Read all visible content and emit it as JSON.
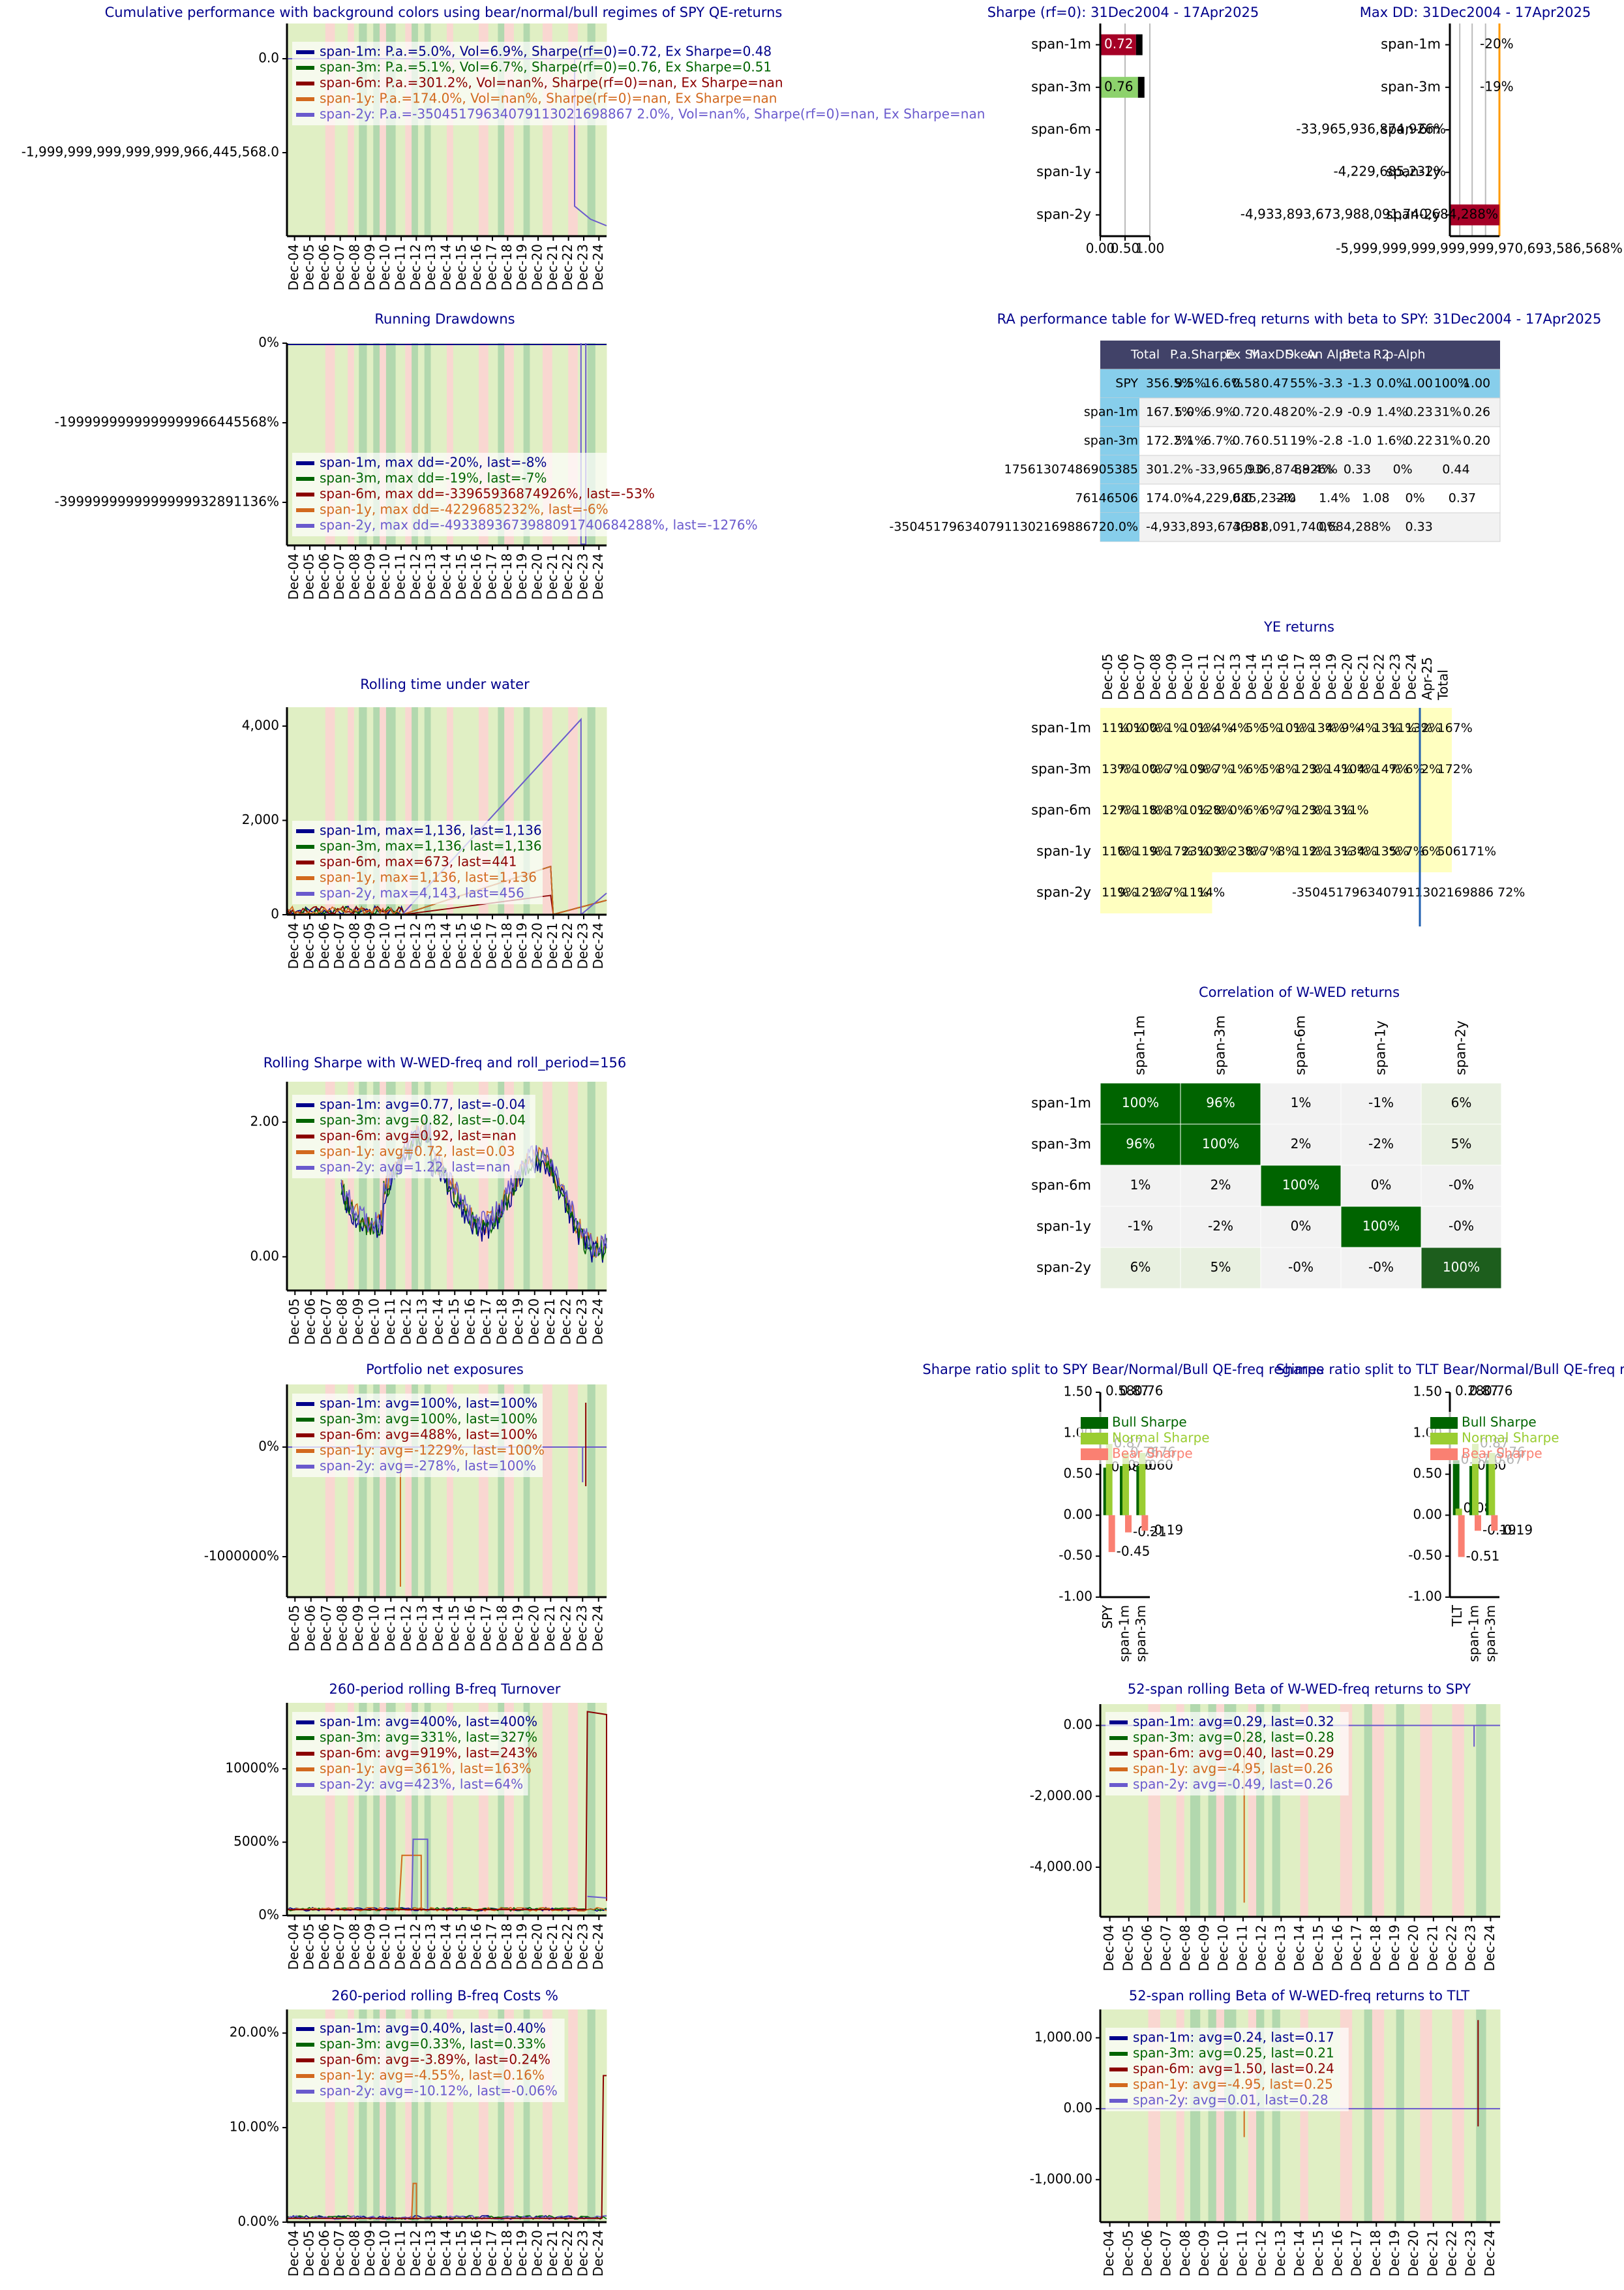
{
  "colors": {
    "series": [
      "#00008b",
      "#006400",
      "#8b0000",
      "#d2691e",
      "#6a5acd"
    ],
    "title": "#00008b",
    "regime_bear": "#f9d7d1",
    "regime_normal": "#e0efc4",
    "regime_bull": "#b2d8ae",
    "table_header": "#414268",
    "table_highlight": "#87ceeb",
    "yellow_cell": "#ffffc0",
    "green_dark": "#006400",
    "bar_red": "#a50026",
    "bar_green": "#8dd26c",
    "bull": "#006400",
    "normal": "#9acd32",
    "bear_bar": "#fa8072"
  },
  "series_names": [
    "span-1m",
    "span-3m",
    "span-6m",
    "span-1y",
    "span-2y"
  ],
  "year_labels": [
    "Dec-04",
    "Dec-05",
    "Dec-06",
    "Dec-07",
    "Dec-08",
    "Dec-09",
    "Dec-10",
    "Dec-11",
    "Dec-12",
    "Dec-13",
    "Dec-14",
    "Dec-15",
    "Dec-16",
    "Dec-17",
    "Dec-18",
    "Dec-19",
    "Dec-20",
    "Dec-21",
    "Dec-22",
    "Dec-23",
    "Dec-24"
  ],
  "year_labels_from05": [
    "Dec-05",
    "Dec-06",
    "Dec-07",
    "Dec-08",
    "Dec-09",
    "Dec-10",
    "Dec-11",
    "Dec-12",
    "Dec-13",
    "Dec-14",
    "Dec-15",
    "Dec-16",
    "Dec-17",
    "Dec-18",
    "Dec-19",
    "Dec-20",
    "Dec-21",
    "Dec-22",
    "Dec-23",
    "Dec-24"
  ],
  "regimes": [
    {
      "s": 0.0,
      "e": 0.12,
      "r": "n"
    },
    {
      "s": 0.12,
      "e": 0.15,
      "r": "b"
    },
    {
      "s": 0.15,
      "e": 0.19,
      "r": "n"
    },
    {
      "s": 0.19,
      "e": 0.21,
      "r": "b"
    },
    {
      "s": 0.21,
      "e": 0.225,
      "r": "n"
    },
    {
      "s": 0.225,
      "e": 0.25,
      "r": "B"
    },
    {
      "s": 0.25,
      "e": 0.27,
      "r": "n"
    },
    {
      "s": 0.27,
      "e": 0.29,
      "r": "B"
    },
    {
      "s": 0.29,
      "e": 0.31,
      "r": "b"
    },
    {
      "s": 0.31,
      "e": 0.34,
      "r": "B"
    },
    {
      "s": 0.34,
      "e": 0.37,
      "r": "n"
    },
    {
      "s": 0.37,
      "e": 0.39,
      "r": "b"
    },
    {
      "s": 0.39,
      "e": 0.41,
      "r": "B"
    },
    {
      "s": 0.41,
      "e": 0.43,
      "r": "n"
    },
    {
      "s": 0.43,
      "e": 0.45,
      "r": "B"
    },
    {
      "s": 0.45,
      "e": 0.5,
      "r": "n"
    },
    {
      "s": 0.5,
      "e": 0.52,
      "r": "b"
    },
    {
      "s": 0.52,
      "e": 0.6,
      "r": "n"
    },
    {
      "s": 0.6,
      "e": 0.63,
      "r": "b"
    },
    {
      "s": 0.63,
      "e": 0.66,
      "r": "n"
    },
    {
      "s": 0.66,
      "e": 0.68,
      "r": "B"
    },
    {
      "s": 0.68,
      "e": 0.71,
      "r": "b"
    },
    {
      "s": 0.71,
      "e": 0.74,
      "r": "n"
    },
    {
      "s": 0.74,
      "e": 0.76,
      "r": "B"
    },
    {
      "s": 0.76,
      "e": 0.8,
      "r": "n"
    },
    {
      "s": 0.8,
      "e": 0.83,
      "r": "b"
    },
    {
      "s": 0.83,
      "e": 0.88,
      "r": "n"
    },
    {
      "s": 0.88,
      "e": 0.91,
      "r": "b"
    },
    {
      "s": 0.91,
      "e": 0.94,
      "r": "n"
    },
    {
      "s": 0.94,
      "e": 0.965,
      "r": "B"
    },
    {
      "s": 0.965,
      "e": 1.0,
      "r": "n"
    }
  ],
  "chart_data": [
    {
      "id": "cum",
      "type": "line",
      "title": "Cumulative performance with background colors using bear/normal/bull regimes of SPY QE-returns",
      "ytick_labels": [
        "0.0",
        "-1,999,999,999,999,999,966,445,568.0"
      ],
      "legend": [
        "span-1m: P.a.=5.0%, Vol=6.9%, Sharpe(rf=0)=0.72, Ex Sharpe=0.48",
        "span-3m: P.a.=5.1%, Vol=6.7%, Sharpe(rf=0)=0.76, Ex Sharpe=0.51",
        "span-6m: P.a.=301.2%, Vol=nan%, Sharpe(rf=0)=nan, Ex Sharpe=nan",
        "span-1y: P.a.=174.0%, Vol=nan%, Sharpe(rf=0)=nan, Ex Sharpe=nan",
        "span-2y: P.a.=-35045179634079113021698867 2.0%, Vol=nan%, Sharpe(rf=0)=nan, Ex Sharpe=nan"
      ]
    },
    {
      "id": "sharpe_bar",
      "type": "bar",
      "title": "Sharpe (rf=0): 31Dec2004 - 17Apr2025",
      "categories": [
        "span-1m",
        "span-3m",
        "span-6m",
        "span-1y",
        "span-2y"
      ],
      "values": [
        0.72,
        0.76,
        null,
        null,
        null
      ],
      "value_labels": [
        "0.72",
        "0.76",
        "",
        "",
        ""
      ],
      "xtick_labels": [
        "0.00",
        "0.50",
        "1.00"
      ],
      "xlim": [
        0,
        1
      ]
    },
    {
      "id": "maxdd_bar",
      "type": "bar",
      "title": "Max DD: 31Dec2004 - 17Apr2025",
      "categories": [
        "span-1m",
        "span-3m",
        "span-6m",
        "span-1y",
        "span-2y"
      ],
      "value_labels": [
        "-20%",
        "-19%",
        "-33,965,936,874,926%",
        "-4,229,685,232%",
        "-4,933,893,673,988,091,740,684,288%"
      ],
      "xtick_label": "-5,999,999,999,999,999,970,693,586,568%"
    },
    {
      "id": "running_dd",
      "type": "line",
      "title": "Running Drawdowns",
      "ytick_labels": [
        "0%",
        "-1999999999999999966445568%",
        "-3999999999999999932891136%"
      ],
      "legend": [
        "span-1m, max dd=-20%, last=-8%",
        "span-3m, max dd=-19%, last=-7%",
        "span-6m, max dd=-33965936874926%, last=-53%",
        "span-1y, max dd=-4229685232%, last=-6%",
        "span-2y, max dd=-4933893673988091740684288%, last=-1276%"
      ]
    },
    {
      "id": "ra_table",
      "type": "table",
      "title": "RA performance table for W-WED-freq returns with beta to SPY: 31Dec2004 - 17Apr2025",
      "columns": [
        "",
        "Total",
        "P.a.",
        "Sharpe",
        "Ex Sh",
        "MaxDD",
        "Skew",
        "An Alpha",
        "Beta",
        "R2",
        "p-Alpha"
      ],
      "rows": [
        [
          "SPY",
          "356.5%",
          "9.5%",
          "16.6%",
          "0.58",
          "0.47",
          "55%",
          "-3.3",
          "-1.3",
          "0.0%",
          "1.00",
          "100%",
          "1.00"
        ],
        [
          "span-1m",
          "167.1%",
          "5.0%",
          "6.9%",
          "0.72",
          "0.48",
          "20%",
          "-2.9",
          "-0.9",
          "1.4%",
          "0.23",
          "31%",
          "0.26"
        ],
        [
          "span-3m",
          "172.2%",
          "5.1%",
          "6.7%",
          "0.76",
          "0.51",
          "19%",
          "-2.8",
          "-1.0",
          "1.6%",
          "0.22",
          "31%",
          "0.20"
        ],
        [
          "17561307486905385",
          "301.2%",
          "",
          "-33,965,936,874,926%",
          "",
          "",
          "",
          "0.0",
          "",
          "88.4%",
          "0.33",
          "0%",
          "0.44"
        ],
        [
          "76146506",
          "174.0%",
          "",
          "-4,229,685,232%",
          "",
          "",
          "",
          "0.0",
          "-40",
          "1.4%",
          "1.08",
          "0%",
          "0.37"
        ],
        [
          "-3504517963407911302169886720.0%",
          "",
          "",
          "-4,933,893,673,988,091,740,684,288%",
          "",
          "",
          "",
          "",
          "",
          "46.81",
          "",
          "0%",
          "0.33"
        ]
      ]
    },
    {
      "id": "ye",
      "type": "heatmap",
      "title": "YE returns",
      "columns": [
        "Dec-05",
        "Dec-06",
        "Dec-07",
        "Dec-08",
        "Dec-09",
        "Dec-10",
        "Dec-11",
        "Dec-12",
        "Dec-13",
        "Dec-14",
        "Dec-15",
        "Dec-16",
        "Dec-17",
        "Dec-18",
        "Dec-19",
        "Dec-20",
        "Dec-21",
        "Dec-22",
        "Dec-23",
        "Dec-24",
        "Apr-25",
        "Total"
      ],
      "rows": [
        "span-1m",
        "span-3m",
        "span-6m",
        "span-1y",
        "span-2y"
      ],
      "cells": [
        [
          "11%",
          "10%",
          "10%",
          "0%",
          "1%",
          "10%",
          "1%",
          "4%",
          "4%",
          "5%",
          "5%",
          "10%",
          "1%",
          "13%",
          "4%",
          "9%",
          "4%",
          "13%",
          "11%",
          "13%",
          "2%",
          "167%"
        ],
        [
          "13%",
          "7%",
          "10%",
          "0%",
          "7%",
          "10%",
          "9%",
          "7%",
          "1%",
          "6%",
          "5%",
          "8%",
          "12%",
          "3%",
          "14%",
          "10%",
          "4%",
          "14%",
          "7%",
          "6%",
          "2%",
          "172%"
        ],
        [
          "12%",
          "7%",
          "11%",
          "8%",
          "8%",
          "10%",
          "12%",
          "8%",
          "0%",
          "6%",
          "6%",
          "7%",
          "12%",
          "3%",
          "13%",
          "11%",
          "",
          "",
          "",
          "",
          "",
          "",
          ""
        ],
        [
          "11%",
          "6%",
          "11%",
          "9%",
          "17%",
          "23%",
          "10%",
          "3%",
          "23%",
          "8%",
          "7%",
          "8%",
          "11%",
          "2%",
          "13%",
          "13%",
          "4%",
          "13%",
          "5%",
          "7%",
          "6%",
          "506171%"
        ],
        [
          "11%",
          "9%",
          "12%",
          "1%",
          "7%",
          "11%",
          "14%",
          "",
          "",
          "",
          "",
          "",
          "",
          "",
          "",
          "",
          "",
          "",
          "",
          "",
          "",
          "-3504517963407911302169886 72%"
        ]
      ],
      "green_cells": [
        [
          2,
          17
        ],
        [
          2,
          18
        ],
        [
          2,
          20
        ],
        [
          2,
          21
        ]
      ]
    },
    {
      "id": "rolling_tuw",
      "type": "line",
      "title": "Rolling time under water",
      "ytick_labels": [
        "0",
        "2,000",
        "4,000"
      ],
      "yvalues": [
        0,
        2000,
        4000
      ],
      "ylim": [
        0,
        4400
      ],
      "legend": [
        "span-1m, max=1,136, last=1,136",
        "span-3m, max=1,136, last=1,136",
        "span-6m, max=673, last=441",
        "span-1y, max=1,136, last=1,136",
        "span-2y, max=4,143, last=456"
      ]
    },
    {
      "id": "corr",
      "type": "heatmap",
      "title": "Correlation of W-WED returns",
      "labels": [
        "span-1m",
        "span-3m",
        "span-6m",
        "span-1y",
        "span-2y"
      ],
      "matrix": [
        [
          "100%",
          "96%",
          "1%",
          "-1%",
          "6%"
        ],
        [
          "96%",
          "100%",
          "2%",
          "-2%",
          "5%"
        ],
        [
          "1%",
          "2%",
          "100%",
          "0%",
          "-0%"
        ],
        [
          "-1%",
          "-2%",
          "0%",
          "100%",
          "-0%"
        ],
        [
          "6%",
          "5%",
          "-0%",
          "-0%",
          "100%"
        ]
      ],
      "values": [
        [
          1.0,
          0.96,
          0.01,
          -0.01,
          0.06
        ],
        [
          0.96,
          1.0,
          0.02,
          -0.02,
          0.05
        ],
        [
          0.01,
          0.02,
          1.0,
          0.0,
          0.0
        ],
        [
          -0.01,
          -0.02,
          0.0,
          1.0,
          0.0
        ],
        [
          0.06,
          0.05,
          0.0,
          0.0,
          1.0
        ]
      ]
    },
    {
      "id": "rolling_sharpe",
      "type": "line",
      "title": "Rolling Sharpe with W-WED-freq and roll_period=156",
      "ytick_labels": [
        "0.00",
        "2.00"
      ],
      "yvalues": [
        0,
        2
      ],
      "ylim": [
        -0.5,
        2.6
      ],
      "legend": [
        "span-1m: avg=0.77, last=-0.04",
        "span-3m: avg=0.82, last=-0.04",
        "span-6m: avg=0.92, last=nan",
        "span-1y: avg=0.72, last=0.03",
        "span-2y: avg=1.22, last=nan"
      ]
    },
    {
      "id": "exposures",
      "type": "line",
      "title": "Portfolio net exposures",
      "ytick_labels": [
        "0%",
        "-1000000%"
      ],
      "legend": [
        "span-1m: avg=100%, last=100%",
        "span-3m: avg=100%, last=100%",
        "span-6m: avg=488%, last=100%",
        "span-1y: avg=-1229%, last=100%",
        "span-2y: avg=-278%, last=100%"
      ]
    },
    {
      "id": "sharpe_split_spy",
      "type": "bar",
      "title": "Sharpe ratio split to SPY Bear/Normal/Bull QE-freq regimes",
      "categories": [
        "SPY",
        "span-1m",
        "span-3m"
      ],
      "ytick_labels": [
        "1.50",
        "1.00",
        "0.50",
        "0.00",
        "-0.50",
        "-1.00"
      ],
      "yvalues": [
        1.5,
        1.0,
        0.5,
        0.0,
        -0.5,
        -1.0
      ],
      "ylim": [
        -1.0,
        1.5
      ],
      "series": [
        {
          "name": "Bull Sharpe",
          "values": [
            0.58,
            0.6,
            0.6
          ],
          "labels": [
            "0.58",
            "0.60",
            "0.60"
          ]
        },
        {
          "name": "Normal Sharpe",
          "values": [
            0.87,
            0.76,
            0.76
          ],
          "labels": [
            "0.87",
            "0.76",
            "0.76"
          ]
        },
        {
          "name": "Bear Sharpe",
          "values": [
            -0.45,
            -0.21,
            -0.19
          ],
          "labels": [
            "-0.45",
            "-0.21",
            "-0.19"
          ]
        }
      ],
      "top_labels": [
        "0.58",
        "0.87",
        "0.76"
      ]
    },
    {
      "id": "sharpe_split_tlt",
      "type": "bar",
      "title": "Sharpe ratio split to TLT Bear/Normal/Bull QE-freq regimes",
      "categories": [
        "TLT",
        "span-1m",
        "span-3m"
      ],
      "ytick_labels": [
        "1.50",
        "1.00",
        "0.50",
        "0.00",
        "-0.50",
        "-1.00"
      ],
      "yvalues": [
        1.5,
        1.0,
        0.5,
        0.0,
        -0.5,
        -1.0
      ],
      "ylim": [
        -1.0,
        1.5
      ],
      "series": [
        {
          "name": "Bull Sharpe",
          "values": [
            0.67,
            0.6,
            0.67
          ],
          "labels": [
            "0.67",
            "0.60",
            "0.67"
          ]
        },
        {
          "name": "Normal Sharpe",
          "values": [
            0.08,
            0.87,
            0.76
          ],
          "labels": [
            "0.08",
            "0.87",
            "0.76"
          ]
        },
        {
          "name": "Bear Sharpe",
          "values": [
            -0.51,
            -0.19,
            -0.19
          ],
          "labels": [
            "-0.51",
            "-0.19",
            "-0.19"
          ]
        }
      ],
      "top_labels": [
        "0.28",
        "0.87",
        "0.76"
      ]
    },
    {
      "id": "turnover",
      "type": "line",
      "title": "260-period rolling B-freq Turnover",
      "ytick_labels": [
        "0%",
        "5000%",
        "10000%"
      ],
      "yvalues": [
        0,
        5000,
        10000
      ],
      "ylim": [
        0,
        14500
      ],
      "legend": [
        "span-1m: avg=400%, last=400%",
        "span-3m: avg=331%, last=327%",
        "span-6m: avg=919%, last=243%",
        "span-1y: avg=361%, last=163%",
        "span-2y: avg=423%, last=64%"
      ]
    },
    {
      "id": "beta_spy",
      "type": "line",
      "title": "52-span rolling Beta of W-WED-freq returns to SPY",
      "ytick_labels": [
        "0.00",
        "-2,000.00",
        "-4,000.00"
      ],
      "yvalues": [
        0,
        -2000,
        -4000
      ],
      "ylim": [
        -5400,
        600
      ],
      "legend": [
        "span-1m: avg=0.29, last=0.32",
        "span-3m: avg=0.28, last=0.28",
        "span-6m: avg=0.40, last=0.29",
        "span-1y: avg=-4.95, last=0.26",
        "span-2y: avg=-0.49, last=0.26"
      ]
    },
    {
      "id": "costs",
      "type": "line",
      "title": "260-period rolling B-freq Costs %",
      "ytick_labels": [
        "0.00%",
        "10.00%",
        "20.00%"
      ],
      "yvalues": [
        0,
        10,
        20
      ],
      "ylim": [
        0,
        22.5
      ],
      "legend": [
        "span-1m: avg=0.40%, last=0.40%",
        "span-3m: avg=0.33%, last=0.33%",
        "span-6m: avg=-3.89%, last=0.24%",
        "span-1y: avg=-4.55%, last=0.16%",
        "span-2y: avg=-10.12%, last=-0.06%"
      ]
    },
    {
      "id": "beta_tlt",
      "type": "line",
      "title": "52-span rolling Beta of W-WED-freq returns to TLT",
      "ytick_labels": [
        "1,000.00",
        "0.00",
        "-1,000.00"
      ],
      "yvalues": [
        1000,
        0,
        -1000
      ],
      "ylim": [
        -1600,
        1400
      ],
      "legend": [
        "span-1m: avg=0.24, last=0.17",
        "span-3m: avg=0.25, last=0.21",
        "span-6m: avg=1.50, last=0.24",
        "span-1y: avg=-4.95, last=0.25",
        "span-2y: avg=0.01, last=0.28"
      ]
    }
  ]
}
